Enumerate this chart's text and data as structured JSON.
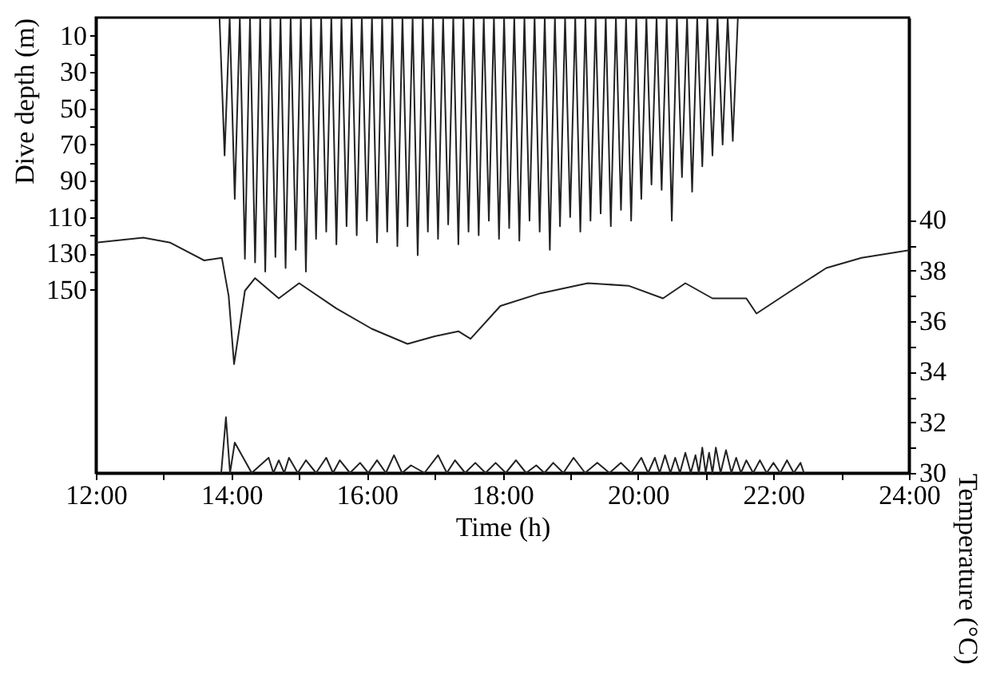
{
  "chart_data": {
    "type": "line",
    "xlabel": "Time (h)",
    "ylabel": "Dive depth (m)",
    "y2label": "Temperature (°C)",
    "line_style": "solid",
    "xlim": [
      12,
      24
    ],
    "xticks": [
      {
        "value": 12,
        "label": "12:00"
      },
      {
        "value": 13,
        "label": null
      },
      {
        "value": 14,
        "label": "14:00"
      },
      {
        "value": 15,
        "label": null
      },
      {
        "value": 16,
        "label": "16:00"
      },
      {
        "value": 17,
        "label": null
      },
      {
        "value": 18,
        "label": "18:00"
      },
      {
        "value": 19,
        "label": null
      },
      {
        "value": 20,
        "label": "20:00"
      },
      {
        "value": 21,
        "label": null
      },
      {
        "value": 22,
        "label": "22:00"
      },
      {
        "value": 23,
        "label": null
      },
      {
        "value": 24,
        "label": "24:00"
      }
    ],
    "ylim": [
      251,
      0
    ],
    "yticks": [
      10,
      {
        "value": 20,
        "label": null
      },
      30,
      {
        "value": 40,
        "label": null
      },
      50,
      {
        "value": 60,
        "label": null
      },
      70,
      {
        "value": 80,
        "label": null
      },
      90,
      {
        "value": 100,
        "label": null
      },
      110,
      {
        "value": 120,
        "label": null
      },
      130,
      {
        "value": 140,
        "label": null
      },
      150
    ],
    "y2lim": [
      30,
      48
    ],
    "y2ticks": [
      30,
      {
        "value": 31,
        "label": null
      },
      32,
      {
        "value": 33,
        "label": null
      },
      34,
      {
        "value": 35,
        "label": null
      },
      36,
      {
        "value": 37,
        "label": null
      },
      38,
      {
        "value": 39,
        "label": null
      },
      40
    ],
    "series": [
      {
        "color": "#222222",
        "x": [
          13.825,
          13.9,
          13.975,
          14.05,
          14.125,
          14.2,
          14.275,
          14.35,
          14.425,
          14.5,
          14.575,
          14.65,
          14.725,
          14.8,
          14.875,
          14.95,
          15.025,
          15.1,
          15.175,
          15.25,
          15.325,
          15.4,
          15.475,
          15.55,
          15.625,
          15.7,
          15.775,
          15.85,
          15.925,
          16.0,
          16.075,
          16.15,
          16.225,
          16.3,
          16.375,
          16.45,
          16.525,
          16.6,
          16.675,
          16.75,
          16.825,
          16.9,
          16.975,
          17.05,
          17.125,
          17.2,
          17.275,
          17.35,
          17.425,
          17.5,
          17.575,
          17.65,
          17.725,
          17.8,
          17.875,
          17.95,
          18.025,
          18.1,
          18.175,
          18.25,
          18.325,
          18.4,
          18.475,
          18.55,
          18.625,
          18.7,
          18.775,
          18.85,
          18.925,
          19.0,
          19.075,
          19.15,
          19.225,
          19.3,
          19.375,
          19.45,
          19.525,
          19.6,
          19.675,
          19.75,
          19.825,
          19.9,
          19.975,
          20.05,
          20.125,
          20.2,
          20.275,
          20.35,
          20.425,
          20.5,
          20.575,
          20.65,
          20.725,
          20.8,
          20.875,
          20.95,
          21.025,
          21.1,
          21.175,
          21.25,
          21.325,
          21.4,
          21.475
        ],
        "values": [
          0,
          76,
          0,
          100,
          0,
          133,
          0,
          135,
          0,
          140,
          0,
          132,
          0,
          138,
          0,
          128,
          0,
          140,
          0,
          122,
          0,
          118,
          0,
          125,
          0,
          115,
          0,
          120,
          0,
          112,
          0,
          124,
          0,
          118,
          0,
          126,
          0,
          115,
          0,
          131,
          0,
          118,
          0,
          122,
          0,
          114,
          0,
          125,
          0,
          118,
          0,
          120,
          0,
          112,
          0,
          122,
          0,
          116,
          0,
          123,
          0,
          112,
          0,
          118,
          0,
          128,
          0,
          115,
          0,
          110,
          0,
          118,
          0,
          112,
          0,
          108,
          0,
          115,
          0,
          106,
          0,
          112,
          0,
          100,
          0,
          92,
          0,
          95,
          0,
          112,
          0,
          88,
          0,
          96,
          0,
          82,
          0,
          76,
          0,
          70,
          0,
          68,
          0
        ]
      },
      {
        "color": "#222222",
        "axis": "y2",
        "x": [
          12,
          12.7,
          13.1,
          13.6,
          13.86,
          13.96,
          14.04,
          14.2,
          14.35,
          14.7,
          15.0,
          15.55,
          16.07,
          16.6,
          17.0,
          17.35,
          17.53,
          17.97,
          18.56,
          19.26,
          19.86,
          20.37,
          20.7,
          21.1,
          21.6,
          21.75,
          22.26,
          22.78,
          23.3,
          24
        ],
        "values": [
          39.1,
          39.3,
          39.1,
          38.4,
          38.5,
          37.0,
          34.3,
          37.2,
          37.7,
          36.9,
          37.5,
          36.5,
          35.7,
          35.1,
          35.4,
          35.6,
          35.3,
          36.6,
          37.1,
          37.5,
          37.4,
          36.9,
          37.5,
          36.9,
          36.9,
          36.3,
          37.2,
          38.1,
          38.5,
          38.8
        ]
      },
      {
        "color": "#222222",
        "axis": "y2",
        "x": [
          13.85,
          13.92,
          13.98,
          14.05,
          14.3,
          14.55,
          14.62,
          14.7,
          14.78,
          14.85,
          14.98,
          15.1,
          15.25,
          15.4,
          15.5,
          15.6,
          15.75,
          15.9,
          16.02,
          16.15,
          16.28,
          16.4,
          16.52,
          16.65,
          16.85,
          17.05,
          17.18,
          17.3,
          17.45,
          17.6,
          17.75,
          17.9,
          18.05,
          18.2,
          18.35,
          18.5,
          18.62,
          18.75,
          18.9,
          19.05,
          19.22,
          19.4,
          19.58,
          19.75,
          19.9,
          20.05,
          20.15,
          20.25,
          20.32,
          20.4,
          20.48,
          20.55,
          20.62,
          20.7,
          20.78,
          20.85,
          20.9,
          20.95,
          21.0,
          21.05,
          21.1,
          21.15,
          21.22,
          21.3,
          21.38,
          21.45,
          21.52,
          21.6,
          21.7,
          21.8,
          21.9,
          22.0,
          22.1,
          22.2,
          22.3,
          22.4,
          22.45
        ],
        "values": [
          30,
          32.2,
          30,
          31.2,
          30,
          30.6,
          30,
          30.5,
          30,
          30.6,
          30,
          30.5,
          30,
          30.6,
          30,
          30.5,
          30,
          30.4,
          30,
          30.5,
          30,
          30.7,
          30,
          30.3,
          30,
          30.7,
          30,
          30.5,
          30,
          30.4,
          30,
          30.4,
          30,
          30.5,
          30,
          30.3,
          30,
          30.4,
          30,
          30.6,
          30,
          30.4,
          30,
          30.4,
          30,
          30.6,
          30,
          30.6,
          30,
          30.7,
          30,
          30.6,
          30,
          30.8,
          30,
          30.7,
          30,
          31.0,
          30,
          30.8,
          30,
          31.0,
          30,
          30.9,
          30,
          30.6,
          30,
          30.5,
          30,
          30.5,
          30,
          30.4,
          30,
          30.5,
          30,
          30.4,
          30
        ]
      }
    ]
  }
}
